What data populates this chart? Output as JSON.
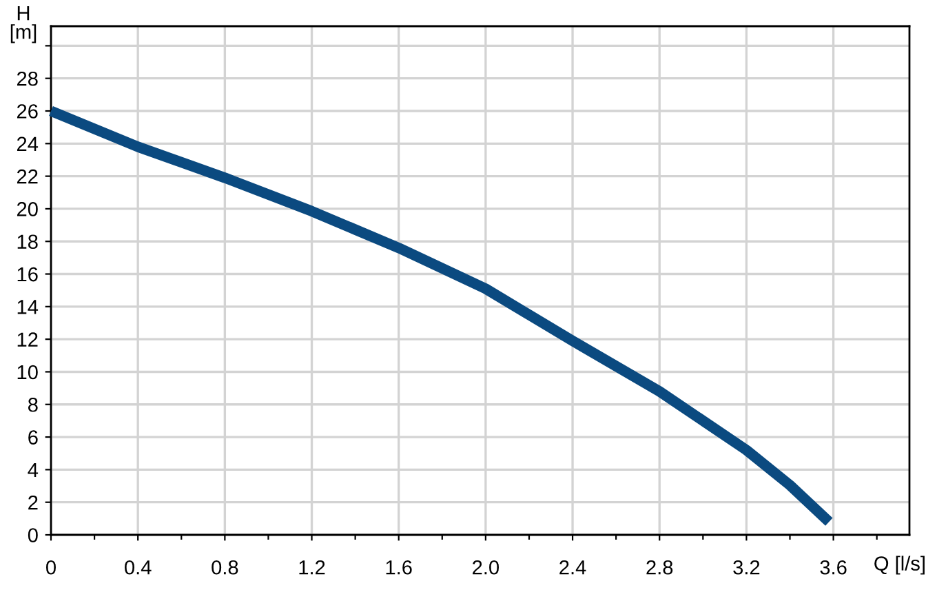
{
  "chart_data": {
    "type": "line",
    "xlabel": "Q [l/s]",
    "ylabel": "H\n[m]",
    "x": [
      0,
      0.4,
      0.8,
      1.2,
      1.6,
      2.0,
      2.4,
      2.8,
      3.2,
      3.4,
      3.58
    ],
    "series": [
      {
        "color": "#0b4a80",
        "values": [
          26.0,
          23.8,
          21.9,
          19.85,
          17.6,
          15.1,
          11.9,
          8.8,
          5.2,
          3.05,
          0.8
        ]
      }
    ],
    "xlim": [
      0,
      3.95
    ],
    "ylim": [
      0,
      31.2
    ],
    "xticks": [
      {
        "value": 0,
        "label": "0"
      },
      0.4,
      0.8,
      1.2,
      1.6,
      {
        "value": 2.0,
        "label": "2.0"
      },
      2.4,
      2.8,
      3.2,
      3.6,
      {
        "value": 0.2,
        "label": null
      },
      {
        "value": 0.6,
        "label": null
      },
      {
        "value": 1.0,
        "label": null
      },
      {
        "value": 1.4,
        "label": null
      },
      {
        "value": 1.8,
        "label": null
      },
      {
        "value": 2.2,
        "label": null
      },
      {
        "value": 2.6,
        "label": null
      },
      {
        "value": 3.0,
        "label": null
      },
      {
        "value": 3.4,
        "label": null
      },
      {
        "value": 3.8,
        "label": null
      }
    ],
    "yticks": [
      0,
      2,
      4,
      6,
      8,
      10,
      12,
      14,
      16,
      18,
      20,
      22,
      24,
      26,
      28,
      {
        "value": 30,
        "label": null
      }
    ],
    "grid": true,
    "marker": "none",
    "line_style": "solid"
  }
}
